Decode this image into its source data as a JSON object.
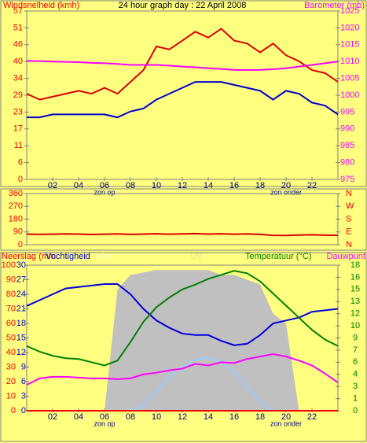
{
  "chart_data": [
    {
      "type": "line",
      "title": "24 hour graph day : 22 April 2008",
      "ylabel": "Windsnelheid (kmh)",
      "y2label": "Barometer (mb)",
      "x": [
        0,
        1,
        2,
        3,
        4,
        5,
        6,
        7,
        8,
        9,
        10,
        11,
        12,
        13,
        14,
        15,
        16,
        17,
        18,
        19,
        20,
        21,
        22,
        23,
        24
      ],
      "xlim": [
        0,
        24
      ],
      "xticks": [
        {
          "value": 2,
          "label": "02"
        },
        {
          "value": 4,
          "label": "04"
        },
        {
          "value": 6,
          "label": "06"
        },
        {
          "value": 8,
          "label": "08"
        },
        10,
        12,
        14,
        16,
        18,
        20,
        22
      ],
      "annotations": [
        {
          "text": "zon op",
          "x": 6
        },
        {
          "text": "zon onder",
          "x": 20
        }
      ],
      "ylim": [
        0,
        57
      ],
      "ycolor": "#ff0000",
      "yticks": [
        0,
        {
          "value": 5.7,
          "label": "6"
        },
        {
          "value": 11.4,
          "label": "11"
        },
        {
          "value": 17.1,
          "label": "17"
        },
        {
          "value": 22.8,
          "label": "23"
        },
        {
          "value": 28.5,
          "label": "29"
        },
        {
          "value": 34.2,
          "label": "34"
        },
        {
          "value": 39.9,
          "label": "40"
        },
        {
          "value": 45.6,
          "label": "46"
        },
        {
          "value": 51.3,
          "label": "51"
        },
        57
      ],
      "y2lim": [
        975,
        1025
      ],
      "y2color": "#ff00ff",
      "y2ticks": [
        975,
        980,
        985,
        990,
        995,
        1000,
        1005,
        1010,
        1015,
        1020,
        1025
      ],
      "series": [
        {
          "color": "#dd0000",
          "axis": "y",
          "values": [
            29,
            27,
            28,
            29,
            30,
            29,
            31,
            29,
            33,
            37,
            45,
            44,
            47,
            50,
            48,
            51,
            47,
            46,
            43,
            46,
            42,
            40,
            37,
            36,
            33
          ]
        },
        {
          "color": "#0000cc",
          "axis": "y",
          "values": [
            21,
            21,
            22,
            22,
            22,
            22,
            22,
            21,
            23,
            24,
            27,
            29,
            31,
            33,
            33,
            33,
            32,
            31,
            30,
            27,
            30,
            29,
            26,
            25,
            22
          ]
        },
        {
          "color": "#ff00ff",
          "axis": "y2",
          "values": [
            1010.2,
            1010.1,
            1010,
            1009.9,
            1009.8,
            1009.6,
            1009.5,
            1009.3,
            1009,
            1009,
            1009,
            1008.8,
            1008.5,
            1008.3,
            1008,
            1007.8,
            1007.5,
            1007.5,
            1007.5,
            1007.7,
            1008,
            1008.5,
            1009,
            1009.5,
            1010
          ]
        }
      ]
    },
    {
      "type": "line",
      "x": [
        0,
        1,
        2,
        3,
        4,
        5,
        6,
        7,
        8,
        9,
        10,
        11,
        12,
        13,
        14,
        15,
        16,
        17,
        18,
        19,
        20,
        21,
        22,
        23,
        24
      ],
      "xlim": [
        0,
        24
      ],
      "ylim": [
        0,
        360
      ],
      "ycolor": "#ff0000",
      "yticks": [
        0,
        90,
        180,
        270,
        360
      ],
      "y2lim": [
        0,
        360
      ],
      "y2color": "#ff0000",
      "y2ticks": [
        {
          "value": 0,
          "label": "N"
        },
        {
          "value": 90,
          "label": "E"
        },
        {
          "value": 180,
          "label": "S"
        },
        {
          "value": 270,
          "label": "W"
        },
        {
          "value": 360,
          "label": "N"
        }
      ],
      "series": [
        {
          "color": "#dd0000",
          "axis": "y",
          "values": [
            75,
            73,
            74,
            76,
            75,
            72,
            74,
            76,
            73,
            75,
            77,
            74,
            76,
            78,
            75,
            77,
            74,
            76,
            73,
            66,
            65,
            68,
            70,
            67,
            66
          ]
        }
      ]
    },
    {
      "type": "line",
      "ylabel": "Neerslag (mm",
      "y3label": "Vochtigheid",
      "solar_label": "olar",
      "uv_label": "UV",
      "y2label": "Temperatuur (°C)",
      "dew_label": "Dauwpunt",
      "x": [
        0,
        1,
        2,
        3,
        4,
        5,
        6,
        7,
        8,
        9,
        10,
        11,
        12,
        13,
        14,
        15,
        16,
        17,
        18,
        19,
        20,
        21,
        22,
        23,
        24
      ],
      "xlim": [
        0,
        24
      ],
      "xticks": [
        {
          "value": 2,
          "label": "02"
        },
        {
          "value": 4,
          "label": "04"
        },
        {
          "value": 6,
          "label": "06"
        },
        {
          "value": 8,
          "label": "08"
        },
        10,
        12,
        14,
        16,
        18,
        20,
        22
      ],
      "annotations": [
        {
          "text": "zon op",
          "x": 6
        },
        {
          "text": "zon onder",
          "x": 20
        }
      ],
      "ylim": [
        0,
        100
      ],
      "ycolor": "#ff0000",
      "yticks": [
        0,
        10,
        20,
        30,
        40,
        50,
        60,
        70,
        80,
        90,
        100
      ],
      "y3lim": [
        0,
        30
      ],
      "y3color": "#0000cc",
      "y3ticks": [
        0,
        3,
        6,
        9,
        12,
        15,
        18,
        21,
        24,
        27,
        30
      ],
      "y2lim": [
        0,
        18
      ],
      "y2color": "#008000",
      "y2ticks": [
        0,
        {
          "value": 1.5,
          "label": "1"
        },
        3,
        {
          "value": 4.5,
          "label": "4"
        },
        6,
        {
          "value": 7.5,
          "label": "7"
        },
        9,
        {
          "value": 10.5,
          "label": "10"
        },
        12,
        {
          "value": 13.5,
          "label": "13"
        },
        15,
        {
          "value": 16.5,
          "label": "16"
        },
        18
      ],
      "series": [
        {
          "color": "#c0c0c0",
          "axis": "y3",
          "style": "area",
          "values": [
            0,
            0,
            0,
            0,
            0,
            0,
            0,
            25,
            28,
            28.5,
            29,
            29,
            29,
            29,
            29,
            28,
            28,
            27,
            26,
            20,
            18,
            0,
            0,
            0,
            0
          ]
        },
        {
          "color": "#99ccff",
          "axis": "y3",
          "values": [
            0,
            0,
            0,
            0,
            0,
            0,
            0,
            0,
            0,
            1,
            4,
            7,
            9,
            10.5,
            11,
            10,
            8,
            5,
            2,
            0,
            0,
            0,
            0,
            0,
            0
          ]
        },
        {
          "color": "#ff0000",
          "axis": "y3",
          "values": [
            0,
            0,
            0,
            0,
            0,
            0,
            0,
            0,
            0,
            0,
            0,
            0,
            0,
            0,
            0,
            0,
            0,
            0,
            0,
            0,
            0,
            0,
            0,
            0,
            0
          ]
        },
        {
          "color": "#0000dd",
          "axis": "y",
          "values": [
            72,
            76,
            80,
            84,
            85,
            86,
            87,
            87,
            80,
            70,
            62,
            57,
            53,
            52,
            52,
            48,
            45,
            46,
            52,
            60,
            62,
            64,
            68,
            69,
            70
          ]
        },
        {
          "color": "#008000",
          "axis": "y2",
          "values": [
            8,
            7.3,
            6.8,
            6.5,
            6.4,
            6,
            5.6,
            6.2,
            8.5,
            11,
            12.8,
            14,
            15,
            15.6,
            16.3,
            16.8,
            17.3,
            17,
            16,
            14.5,
            13,
            11.5,
            10,
            8.8,
            8
          ]
        },
        {
          "color": "#ff00ff",
          "axis": "y2",
          "values": [
            3.2,
            4,
            4.2,
            4.2,
            4.1,
            4,
            4,
            3.9,
            4,
            4.5,
            4.7,
            5,
            5.2,
            5.8,
            5.6,
            6,
            5.9,
            6.4,
            6.7,
            7,
            6.7,
            6.2,
            5.6,
            4.6,
            3.5
          ]
        }
      ]
    }
  ]
}
